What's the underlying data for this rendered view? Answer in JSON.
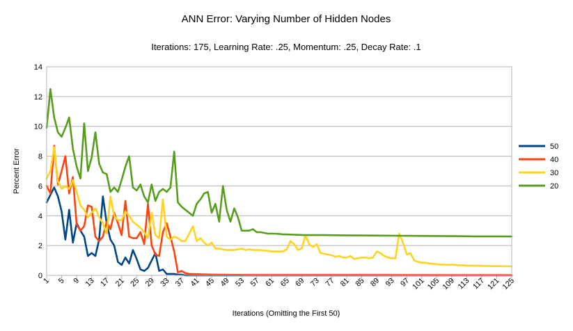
{
  "chart_data": {
    "type": "line",
    "title": "ANN Error: Varying Number of Hidden Nodes",
    "subtitle": "Iterations: 175, Learning Rate: .25, Momentum: .25, Decay Rate: .1",
    "xlabel": "Iterations (Omitting the First 50)",
    "ylabel": "Percent Error",
    "xlim": [
      1,
      125
    ],
    "ylim": [
      0,
      14
    ],
    "y_ticks": [
      "0",
      "2",
      "4",
      "6",
      "8",
      "10",
      "12",
      "14"
    ],
    "x_ticks": [
      "1",
      "5",
      "9",
      "13",
      "17",
      "21",
      "25",
      "29",
      "33",
      "37",
      "41",
      "45",
      "49",
      "53",
      "57",
      "61",
      "65",
      "69",
      "73",
      "77",
      "81",
      "85",
      "89",
      "93",
      "97",
      "101",
      "105",
      "109",
      "113",
      "117",
      "121",
      "125"
    ],
    "grid": true,
    "legend_position": "right",
    "series": [
      {
        "name": "50",
        "color": "#004586",
        "points": [
          [
            1,
            4.9
          ],
          [
            2,
            5.4
          ],
          [
            3,
            5.9
          ],
          [
            4,
            5.3
          ],
          [
            5,
            4.3
          ],
          [
            6,
            2.4
          ],
          [
            7,
            4.4
          ],
          [
            8,
            2.2
          ],
          [
            9,
            3.5
          ],
          [
            10,
            3.0
          ],
          [
            11,
            2.6
          ],
          [
            12,
            1.3
          ],
          [
            13,
            1.5
          ],
          [
            14,
            1.3
          ],
          [
            15,
            2.4
          ],
          [
            16,
            5.3
          ],
          [
            17,
            3.5
          ],
          [
            18,
            2.4
          ],
          [
            19,
            2.0
          ],
          [
            20,
            0.9
          ],
          [
            21,
            0.7
          ],
          [
            22,
            1.2
          ],
          [
            23,
            0.8
          ],
          [
            24,
            1.7
          ],
          [
            25,
            1.1
          ],
          [
            26,
            0.4
          ],
          [
            27,
            0.3
          ],
          [
            28,
            0.5
          ],
          [
            29,
            1.0
          ],
          [
            30,
            1.5
          ],
          [
            31,
            0.3
          ],
          [
            32,
            0.4
          ],
          [
            33,
            0.1
          ],
          [
            34,
            0.1
          ],
          [
            35,
            0.1
          ],
          [
            36,
            0.05
          ],
          [
            37,
            0.05
          ],
          [
            38,
            0.0
          ],
          [
            125,
            0.0
          ]
        ]
      },
      {
        "name": "40",
        "color": "#ff420e",
        "points": [
          [
            1,
            6.0
          ],
          [
            2,
            5.5
          ],
          [
            3,
            8.7
          ],
          [
            4,
            6.1
          ],
          [
            5,
            7.0
          ],
          [
            6,
            8.0
          ],
          [
            7,
            5.5
          ],
          [
            8,
            6.6
          ],
          [
            9,
            3.4
          ],
          [
            10,
            3.0
          ],
          [
            11,
            3.3
          ],
          [
            12,
            4.7
          ],
          [
            13,
            4.6
          ],
          [
            14,
            2.6
          ],
          [
            15,
            2.3
          ],
          [
            16,
            2.6
          ],
          [
            17,
            3.6
          ],
          [
            18,
            3.1
          ],
          [
            19,
            4.2
          ],
          [
            20,
            3.5
          ],
          [
            21,
            2.7
          ],
          [
            22,
            5.0
          ],
          [
            23,
            2.6
          ],
          [
            24,
            2.5
          ],
          [
            25,
            2.5
          ],
          [
            26,
            2.9
          ],
          [
            27,
            2.1
          ],
          [
            28,
            4.8
          ],
          [
            29,
            2.0
          ],
          [
            30,
            1.4
          ],
          [
            31,
            1.3
          ],
          [
            32,
            2.9
          ],
          [
            33,
            3.5
          ],
          [
            34,
            2.6
          ],
          [
            35,
            1.6
          ],
          [
            36,
            0.2
          ],
          [
            37,
            0.3
          ],
          [
            38,
            0.15
          ],
          [
            39,
            0.1
          ],
          [
            45,
            0.05
          ],
          [
            55,
            0.03
          ],
          [
            125,
            0.02
          ]
        ]
      },
      {
        "name": "30",
        "color": "#ffd320",
        "points": [
          [
            1,
            6.5
          ],
          [
            2,
            7.0
          ],
          [
            3,
            8.6
          ],
          [
            4,
            6.3
          ],
          [
            5,
            5.8
          ],
          [
            6,
            6.0
          ],
          [
            7,
            5.8
          ],
          [
            8,
            6.4
          ],
          [
            9,
            5.6
          ],
          [
            10,
            4.7
          ],
          [
            11,
            4.4
          ],
          [
            12,
            3.9
          ],
          [
            13,
            4.2
          ],
          [
            14,
            4.5
          ],
          [
            15,
            3.9
          ],
          [
            16,
            3.5
          ],
          [
            17,
            2.8
          ],
          [
            18,
            5.3
          ],
          [
            19,
            4.0
          ],
          [
            20,
            3.7
          ],
          [
            21,
            3.7
          ],
          [
            22,
            4.3
          ],
          [
            23,
            4.0
          ],
          [
            24,
            3.6
          ],
          [
            25,
            3.4
          ],
          [
            26,
            3.2
          ],
          [
            27,
            2.9
          ],
          [
            28,
            2.5
          ],
          [
            29,
            4.2
          ],
          [
            30,
            2.7
          ],
          [
            31,
            2.5
          ],
          [
            32,
            5.1
          ],
          [
            33,
            2.6
          ],
          [
            34,
            2.4
          ],
          [
            35,
            2.6
          ],
          [
            36,
            2.5
          ],
          [
            37,
            2.3
          ],
          [
            38,
            2.3
          ],
          [
            39,
            2.8
          ],
          [
            40,
            3.3
          ],
          [
            41,
            2.3
          ],
          [
            42,
            2.5
          ],
          [
            43,
            2.2
          ],
          [
            44,
            2.0
          ],
          [
            45,
            2.2
          ],
          [
            46,
            1.8
          ],
          [
            47,
            1.8
          ],
          [
            48,
            1.75
          ],
          [
            49,
            1.7
          ],
          [
            50,
            1.7
          ],
          [
            51,
            1.7
          ],
          [
            52,
            1.75
          ],
          [
            53,
            1.8
          ],
          [
            54,
            1.7
          ],
          [
            55,
            1.75
          ],
          [
            56,
            1.7
          ],
          [
            57,
            1.7
          ],
          [
            58,
            1.7
          ],
          [
            59,
            1.65
          ],
          [
            60,
            1.65
          ],
          [
            61,
            1.6
          ],
          [
            62,
            1.6
          ],
          [
            63,
            1.6
          ],
          [
            64,
            1.6
          ],
          [
            65,
            1.75
          ],
          [
            66,
            2.3
          ],
          [
            67,
            2.1
          ],
          [
            68,
            1.7
          ],
          [
            69,
            1.8
          ],
          [
            70,
            2.7
          ],
          [
            71,
            2.1
          ],
          [
            72,
            1.9
          ],
          [
            73,
            2.1
          ],
          [
            74,
            1.5
          ],
          [
            75,
            1.45
          ],
          [
            76,
            1.4
          ],
          [
            77,
            1.35
          ],
          [
            78,
            1.25
          ],
          [
            79,
            1.3
          ],
          [
            80,
            1.2
          ],
          [
            81,
            1.2
          ],
          [
            82,
            1.3
          ],
          [
            83,
            1.1
          ],
          [
            84,
            1.15
          ],
          [
            85,
            1.2
          ],
          [
            86,
            1.2
          ],
          [
            87,
            1.15
          ],
          [
            88,
            1.2
          ],
          [
            89,
            1.6
          ],
          [
            90,
            1.5
          ],
          [
            91,
            1.3
          ],
          [
            92,
            1.2
          ],
          [
            93,
            1.15
          ],
          [
            94,
            1.15
          ],
          [
            95,
            2.8
          ],
          [
            96,
            2.2
          ],
          [
            97,
            1.4
          ],
          [
            98,
            1.5
          ],
          [
            99,
            1.0
          ],
          [
            100,
            0.9
          ],
          [
            101,
            0.85
          ],
          [
            102,
            0.85
          ],
          [
            103,
            0.8
          ],
          [
            104,
            0.78
          ],
          [
            105,
            0.75
          ],
          [
            106,
            0.72
          ],
          [
            107,
            0.72
          ],
          [
            108,
            0.7
          ],
          [
            109,
            0.72
          ],
          [
            110,
            0.7
          ],
          [
            111,
            0.68
          ],
          [
            112,
            0.68
          ],
          [
            113,
            0.66
          ],
          [
            114,
            0.65
          ],
          [
            115,
            0.65
          ],
          [
            116,
            0.65
          ],
          [
            117,
            0.64
          ],
          [
            118,
            0.63
          ],
          [
            119,
            0.63
          ],
          [
            120,
            0.62
          ],
          [
            121,
            0.62
          ],
          [
            122,
            0.62
          ],
          [
            123,
            0.61
          ],
          [
            124,
            0.61
          ],
          [
            125,
            0.6
          ]
        ]
      },
      {
        "name": "20",
        "color": "#579d1c",
        "points": [
          [
            1,
            9.9
          ],
          [
            2,
            12.5
          ],
          [
            3,
            10.6
          ],
          [
            4,
            9.6
          ],
          [
            5,
            9.3
          ],
          [
            6,
            9.9
          ],
          [
            7,
            10.6
          ],
          [
            8,
            8.5
          ],
          [
            9,
            7.3
          ],
          [
            10,
            6.5
          ],
          [
            11,
            10.2
          ],
          [
            12,
            7.0
          ],
          [
            13,
            7.9
          ],
          [
            14,
            9.6
          ],
          [
            15,
            7.5
          ],
          [
            16,
            6.9
          ],
          [
            17,
            6.8
          ],
          [
            18,
            5.6
          ],
          [
            19,
            5.9
          ],
          [
            20,
            5.6
          ],
          [
            21,
            6.4
          ],
          [
            22,
            7.3
          ],
          [
            23,
            8.0
          ],
          [
            24,
            5.9
          ],
          [
            25,
            5.7
          ],
          [
            26,
            6.1
          ],
          [
            27,
            5.3
          ],
          [
            28,
            4.9
          ],
          [
            29,
            6.1
          ],
          [
            30,
            5.0
          ],
          [
            31,
            5.6
          ],
          [
            32,
            5.8
          ],
          [
            33,
            5.6
          ],
          [
            34,
            5.9
          ],
          [
            35,
            8.3
          ],
          [
            36,
            4.9
          ],
          [
            37,
            4.6
          ],
          [
            38,
            4.4
          ],
          [
            39,
            4.2
          ],
          [
            40,
            4.0
          ],
          [
            41,
            4.8
          ],
          [
            42,
            5.1
          ],
          [
            43,
            5.5
          ],
          [
            44,
            5.6
          ],
          [
            45,
            4.2
          ],
          [
            46,
            4.8
          ],
          [
            47,
            3.6
          ],
          [
            48,
            6.0
          ],
          [
            49,
            4.4
          ],
          [
            50,
            3.6
          ],
          [
            51,
            4.5
          ],
          [
            52,
            3.9
          ],
          [
            53,
            3.0
          ],
          [
            54,
            3.0
          ],
          [
            55,
            3.0
          ],
          [
            56,
            3.1
          ],
          [
            57,
            2.9
          ],
          [
            58,
            2.9
          ],
          [
            59,
            2.85
          ],
          [
            60,
            2.8
          ],
          [
            61,
            2.8
          ],
          [
            62,
            2.8
          ],
          [
            63,
            2.78
          ],
          [
            64,
            2.75
          ],
          [
            65,
            2.75
          ],
          [
            66,
            2.74
          ],
          [
            67,
            2.73
          ],
          [
            68,
            2.72
          ],
          [
            69,
            2.71
          ],
          [
            70,
            2.7
          ],
          [
            75,
            2.7
          ],
          [
            80,
            2.69
          ],
          [
            85,
            2.68
          ],
          [
            90,
            2.67
          ],
          [
            95,
            2.66
          ],
          [
            100,
            2.65
          ],
          [
            105,
            2.64
          ],
          [
            110,
            2.63
          ],
          [
            115,
            2.62
          ],
          [
            120,
            2.62
          ],
          [
            125,
            2.61
          ]
        ]
      }
    ]
  }
}
